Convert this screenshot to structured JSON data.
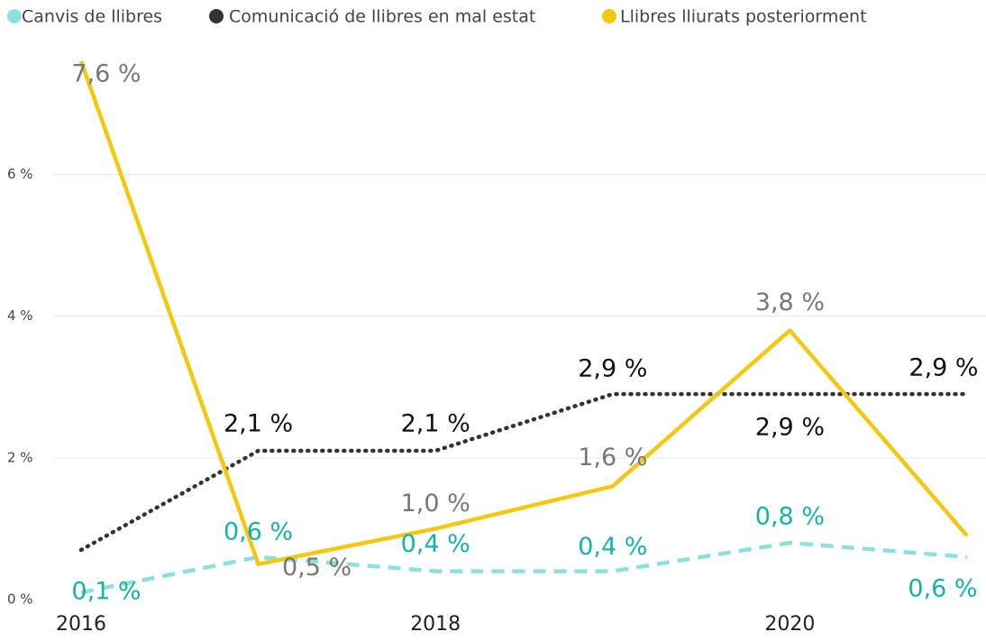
{
  "chart_data": {
    "type": "line",
    "x": [
      2016,
      2017,
      2018,
      2019,
      2020,
      2021
    ],
    "xlim": [
      2016,
      2021
    ],
    "xticks": [
      2016,
      2018,
      2020
    ],
    "ylim": [
      0,
      7.7
    ],
    "yticks": [
      {
        "value": 0,
        "label": "0 %"
      },
      {
        "value": 2,
        "label": "2 %"
      },
      {
        "value": 4,
        "label": "4 %"
      },
      {
        "value": 6,
        "label": "6 %"
      }
    ],
    "grid": true,
    "legend": "top-left",
    "series": [
      {
        "name": "Canvis de llibres",
        "color": "#8fe0d8",
        "label_color": "#14b3a5",
        "style": "dashed",
        "values": [
          0.1,
          0.6,
          0.4,
          0.4,
          0.8,
          0.6
        ],
        "value_labels": [
          "0,1 %",
          "0,6 %",
          "0,4 %",
          "0,4 %",
          "0,8 %",
          "0,6 %"
        ]
      },
      {
        "name": "Comunicació de llibres en mal estat",
        "color": "#333333",
        "label_color": "#111111",
        "style": "dotted",
        "values": [
          0.7,
          2.1,
          2.1,
          2.9,
          2.9,
          2.9
        ],
        "value_labels": [
          null,
          "2,1 %",
          "2,1 %",
          "2,9 %",
          "2,9 %",
          "2,9 %"
        ]
      },
      {
        "name": "Llibres lliurats posteriorment",
        "color": "#f2c811",
        "label_color": "#777777",
        "style": "solid",
        "values": [
          7.6,
          0.5,
          1.0,
          1.6,
          3.8,
          0.9
        ],
        "value_labels": [
          "7,6 %",
          "0,5 %",
          "1,0 %",
          "1,6 %",
          "3,8 %",
          null
        ]
      }
    ]
  }
}
